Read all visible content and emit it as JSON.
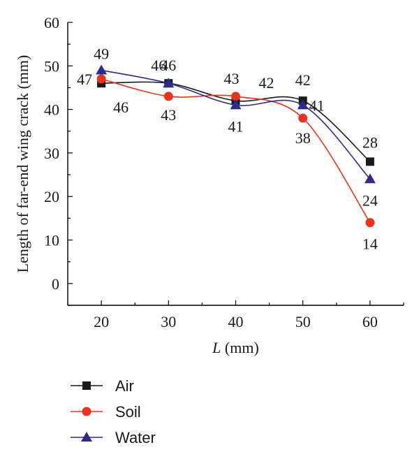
{
  "chart_data": {
    "type": "line",
    "xlabel_italic": "L",
    "xlabel_unit": " (mm)",
    "ylabel": "Length of far-end wing crack (mm)",
    "x": [
      20,
      30,
      40,
      50,
      60
    ],
    "xlim": [
      15,
      65
    ],
    "ylim": [
      -5,
      60
    ],
    "yticks": [
      0,
      10,
      20,
      30,
      40,
      50,
      60
    ],
    "xticks": [
      20,
      30,
      40,
      50,
      60
    ],
    "smoothed": true,
    "legend_position": "bottom-left, below plot",
    "series": [
      {
        "name": "Air",
        "values": [
          46,
          46,
          42,
          42,
          28
        ],
        "color": "#1a1a1a",
        "marker": "square",
        "labels": [
          {
            "text": "",
            "x": 20
          },
          {
            "text": "46",
            "x": 30
          },
          {
            "text": "",
            "x": 40
          },
          {
            "text": "42",
            "x": 50
          },
          {
            "text": "28",
            "x": 60
          }
        ]
      },
      {
        "name": "Soil",
        "values": [
          47,
          43,
          43,
          38,
          14
        ],
        "color": "#e8341c",
        "marker": "circle",
        "labels": [
          {
            "text": "47",
            "x": 20
          },
          {
            "text": "43",
            "x": 30
          },
          {
            "text": "43",
            "x": 40
          },
          {
            "text": "38",
            "x": 50
          },
          {
            "text": "14",
            "x": 60
          }
        ]
      },
      {
        "name": "Water",
        "values": [
          49,
          46,
          41,
          41,
          24
        ],
        "color": "#2e2a8e",
        "marker": "triangle",
        "labels": [
          {
            "text": "49",
            "x": 20
          },
          {
            "text": "46",
            "x": 30
          },
          {
            "text": "41",
            "x": 40
          },
          {
            "text": "41",
            "x": 50
          },
          {
            "text": "24",
            "x": 60
          }
        ]
      }
    ],
    "extra_labels": [
      {
        "text": "46",
        "x": 20,
        "near": "Air"
      },
      {
        "text": "42",
        "x": 40,
        "near": "Air"
      }
    ]
  }
}
